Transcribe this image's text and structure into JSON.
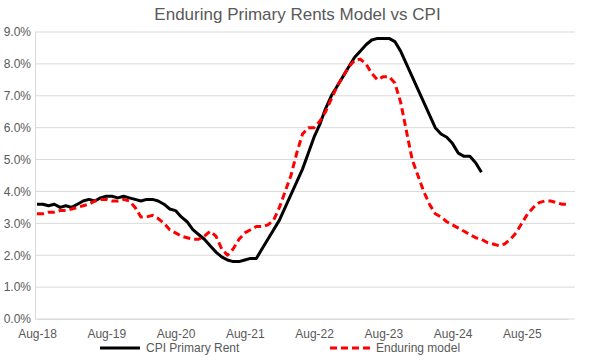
{
  "chart_data": {
    "type": "line",
    "title": "Enduring Primary Rents Model vs CPI",
    "categories": [
      "Aug-18",
      null,
      null,
      null,
      null,
      null,
      null,
      null,
      null,
      null,
      null,
      null,
      "Aug-19",
      null,
      null,
      null,
      null,
      null,
      null,
      null,
      null,
      null,
      null,
      null,
      "Aug-20",
      null,
      null,
      null,
      null,
      null,
      null,
      null,
      null,
      null,
      null,
      null,
      "Aug-21",
      null,
      null,
      null,
      null,
      null,
      null,
      null,
      null,
      null,
      null,
      null,
      "Aug-22",
      null,
      null,
      null,
      null,
      null,
      null,
      null,
      null,
      null,
      null,
      null,
      "Aug-23",
      null,
      null,
      null,
      null,
      null,
      null,
      null,
      null,
      null,
      null,
      null,
      "Aug-24",
      null,
      null,
      null,
      null,
      null,
      null,
      null,
      null,
      null,
      null,
      null,
      "Aug-25",
      null,
      null,
      null,
      null,
      null,
      null,
      null,
      null
    ],
    "series": [
      {
        "name": "CPI Primary Rent",
        "color": "#000000",
        "line_style": "solid",
        "values": [
          3.6,
          3.6,
          3.55,
          3.6,
          3.5,
          3.55,
          3.5,
          3.6,
          3.7,
          3.75,
          3.7,
          3.8,
          3.85,
          3.85,
          3.8,
          3.85,
          3.8,
          3.75,
          3.7,
          3.75,
          3.75,
          3.7,
          3.6,
          3.45,
          3.4,
          3.2,
          3.05,
          2.8,
          2.65,
          2.5,
          2.3,
          2.1,
          1.95,
          1.85,
          1.8,
          1.8,
          1.85,
          1.9,
          1.9,
          2.2,
          2.5,
          2.8,
          3.1,
          3.5,
          3.9,
          4.3,
          4.7,
          5.2,
          5.7,
          6.1,
          6.6,
          7.0,
          7.3,
          7.6,
          7.9,
          8.2,
          8.4,
          8.6,
          8.75,
          8.8,
          8.8,
          8.8,
          8.7,
          8.4,
          8.0,
          7.6,
          7.2,
          6.8,
          6.4,
          6.0,
          5.8,
          5.7,
          5.5,
          5.2,
          5.1,
          5.1,
          4.9,
          4.6,
          null,
          null,
          null,
          null,
          null,
          null,
          null,
          null,
          null,
          null,
          null,
          null,
          null,
          null,
          null
        ]
      },
      {
        "name": "Enduring model",
        "color": "#ff0000",
        "line_style": "dashed",
        "values": [
          3.3,
          3.3,
          3.35,
          3.35,
          3.4,
          3.4,
          3.45,
          3.5,
          3.55,
          3.6,
          3.7,
          3.75,
          3.75,
          3.7,
          3.7,
          3.75,
          3.7,
          3.5,
          3.2,
          3.2,
          3.25,
          3.15,
          3.0,
          2.8,
          2.7,
          2.6,
          2.55,
          2.5,
          2.5,
          2.6,
          2.75,
          2.6,
          2.2,
          2.0,
          2.2,
          2.5,
          2.7,
          2.8,
          2.9,
          2.9,
          2.95,
          3.1,
          3.5,
          4.0,
          4.5,
          5.2,
          5.8,
          6.0,
          6.0,
          6.2,
          6.5,
          6.9,
          7.3,
          7.6,
          7.9,
          8.1,
          8.15,
          8.0,
          7.7,
          7.5,
          7.6,
          7.6,
          7.4,
          6.8,
          5.9,
          5.0,
          4.5,
          4.0,
          3.6,
          3.3,
          3.2,
          3.05,
          2.95,
          2.85,
          2.75,
          2.65,
          2.55,
          2.5,
          2.4,
          2.35,
          2.3,
          2.35,
          2.5,
          2.7,
          3.0,
          3.3,
          3.5,
          3.65,
          3.7,
          3.7,
          3.65,
          3.6,
          3.6
        ]
      }
    ],
    "ylim": [
      0,
      9
    ],
    "yticks": [
      {
        "value": 0,
        "label": "0.0%"
      },
      {
        "value": 1,
        "label": "1.0%"
      },
      {
        "value": 2,
        "label": "2.0%"
      },
      {
        "value": 3,
        "label": "3.0%"
      },
      {
        "value": 4,
        "label": "4.0%"
      },
      {
        "value": 5,
        "label": "5.0%"
      },
      {
        "value": 6,
        "label": "6.0%"
      },
      {
        "value": 7,
        "label": "7.0%"
      },
      {
        "value": 8,
        "label": "8.0%"
      },
      {
        "value": 9,
        "label": "9.0%"
      }
    ],
    "grid": true,
    "legend": "bottom"
  }
}
